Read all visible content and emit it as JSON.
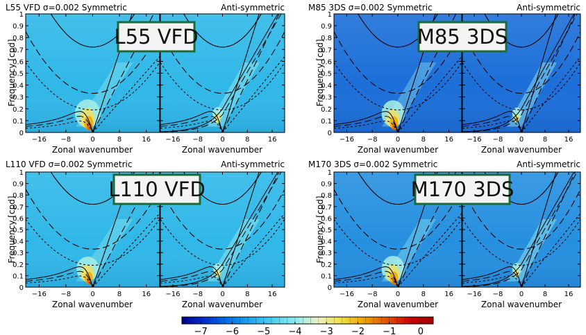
{
  "chart_data": [
    {
      "type": "heatmap",
      "label": "L55 VFD",
      "left_title": "L55 VFD σ=0.002 Symmetric",
      "right_title": "Anti-symmetric",
      "xlabel": "Zonal wavenumber",
      "ylabel": "Frequency [cpd]",
      "xlim": [
        -20,
        20
      ],
      "ylim": [
        0,
        1
      ],
      "xticks": [
        -16,
        -8,
        0,
        8,
        16
      ],
      "yticks": [
        0,
        0.1,
        0.2,
        0.3,
        0.4,
        0.5,
        0.6,
        0.7,
        0.8,
        0.9,
        1
      ],
      "bg_color": "#30b8e8",
      "peak_intensity": 0.85
    },
    {
      "type": "heatmap",
      "label": "M85 3DS",
      "left_title": "M85 3DS σ=0.002 Symmetric",
      "right_title": "Anti-symmetric",
      "xlabel": "Zonal wavenumber",
      "ylabel": "Frequency [cpd]",
      "xlim": [
        -20,
        20
      ],
      "ylim": [
        0,
        1
      ],
      "xticks": [
        -16,
        -8,
        0,
        8,
        16
      ],
      "yticks": [
        0,
        0.1,
        0.2,
        0.3,
        0.4,
        0.5,
        0.6,
        0.7,
        0.8,
        0.9,
        1
      ],
      "bg_color": "#1c6fd8",
      "peak_intensity": 0.8
    },
    {
      "type": "heatmap",
      "label": "L110 VFD",
      "left_title": "L110 VFD σ=0.002 Symmetric",
      "right_title": "Anti-symmetric",
      "xlabel": "Zonal wavenumber",
      "ylabel": "Frequency [cpd]",
      "xlim": [
        -20,
        20
      ],
      "ylim": [
        0,
        1
      ],
      "xticks": [
        -16,
        -8,
        0,
        8,
        16
      ],
      "yticks": [
        0,
        0.1,
        0.2,
        0.3,
        0.4,
        0.5,
        0.6,
        0.7,
        0.8,
        0.9,
        1
      ],
      "bg_color": "#30b8e8",
      "peak_intensity": 0.75
    },
    {
      "type": "heatmap",
      "label": "M170 3DS",
      "left_title": "M170 3DS σ=0.002 Symmetric",
      "right_title": "Anti-symmetric",
      "xlabel": "Zonal wavenumber",
      "ylabel": "Frequency [cpd]",
      "xlim": [
        -20,
        20
      ],
      "ylim": [
        0,
        1
      ],
      "xticks": [
        -16,
        -8,
        0,
        8,
        16
      ],
      "yticks": [
        0,
        0.1,
        0.2,
        0.3,
        0.4,
        0.5,
        0.6,
        0.7,
        0.8,
        0.9,
        1
      ],
      "bg_color": "#2690e0",
      "peak_intensity": 0.8
    }
  ],
  "colorbar": {
    "ticks": [
      "−7",
      "−6",
      "−5",
      "−4",
      "−3",
      "−2",
      "−1",
      "0"
    ],
    "range": [
      -7.6,
      0.4
    ],
    "colors": [
      "#00008f",
      "#0030d0",
      "#0070e8",
      "#20a8f0",
      "#50d0f0",
      "#90ecf0",
      "#f0f0c0",
      "#f0e040",
      "#f0a000",
      "#e05000",
      "#d00000",
      "#a00000"
    ]
  },
  "label_box_border": "#1a6a3a"
}
